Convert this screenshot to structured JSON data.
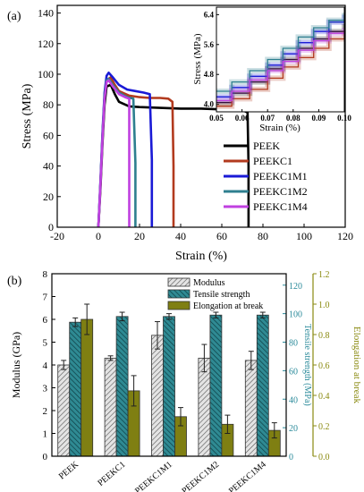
{
  "panels": {
    "a_label": "(a)",
    "b_label": "(b)"
  },
  "colors": {
    "PEEK": "#000000",
    "PEEKC1": "#b23a1e",
    "PEEKC1M1": "#1a1ad6",
    "PEEKC1M2": "#2e7f8f",
    "PEEKC1M4": "#c040e0",
    "modulus_fill": "#d0d0d0",
    "tensile_fill": "#1f6f78",
    "elongation_fill": "#7f7f12",
    "right_axis1": "#2a8a9a",
    "right_axis2": "#8a8a10"
  },
  "chart_data": [
    {
      "type": "line",
      "panel": "a",
      "xlabel": "Strain (%)",
      "ylabel": "Stress (MPa)",
      "xlim": [
        -20,
        120
      ],
      "ylim": [
        0,
        145
      ],
      "xticks": [
        -20,
        0,
        20,
        40,
        60,
        80,
        100,
        120
      ],
      "yticks": [
        0,
        20,
        40,
        60,
        80,
        100,
        120,
        140
      ],
      "legend_position": "right",
      "series": [
        {
          "name": "PEEK",
          "x": [
            0,
            1,
            2,
            3,
            4,
            6,
            8,
            10,
            15,
            20,
            30,
            40,
            50,
            60,
            70,
            72.5,
            73,
            73
          ],
          "y": [
            0,
            25,
            55,
            80,
            92,
            93,
            87,
            82,
            79,
            78.5,
            78,
            77.5,
            77.5,
            77,
            76.5,
            75,
            40,
            0
          ]
        },
        {
          "name": "PEEKC1",
          "x": [
            0,
            1,
            2,
            3,
            4,
            6,
            8,
            10,
            15,
            20,
            25,
            30,
            34,
            36,
            36.5,
            36.5
          ],
          "y": [
            0,
            28,
            60,
            85,
            96,
            98,
            93,
            89,
            86,
            85,
            84.5,
            84.5,
            84,
            82,
            40,
            0
          ]
        },
        {
          "name": "PEEKC1M1",
          "x": [
            0,
            1,
            2,
            3,
            4,
            5,
            7,
            10,
            14,
            18,
            22,
            25,
            26,
            26
          ],
          "y": [
            0,
            30,
            62,
            88,
            99,
            101,
            98,
            93,
            90,
            89,
            88,
            87,
            44,
            0
          ]
        },
        {
          "name": "PEEKC1M2",
          "x": [
            0,
            1,
            2,
            3,
            4,
            5,
            7,
            10,
            14,
            17,
            18,
            18
          ],
          "y": [
            0,
            29,
            60,
            86,
            96,
            97,
            93,
            88,
            85,
            84,
            42,
            0
          ]
        },
        {
          "name": "PEEKC1M4",
          "x": [
            0,
            1,
            2,
            3,
            4,
            5,
            7,
            10,
            13,
            15,
            15
          ],
          "y": [
            0,
            28,
            58,
            84,
            95,
            96,
            92,
            87,
            85,
            84,
            0
          ]
        }
      ]
    },
    {
      "type": "line",
      "panel": "a-inset",
      "xlabel": "Strain (%)",
      "ylabel": "Stress (MPa)",
      "xlim": [
        0.05,
        0.1
      ],
      "ylim": [
        3.8,
        6.6
      ],
      "xticks": [
        0.05,
        0.06,
        0.07,
        0.08,
        0.09,
        0.1
      ],
      "yticks": [
        4.0,
        4.8,
        5.6,
        6.4
      ],
      "xtick_labels": [
        "0.05",
        "0.06",
        "0.07",
        "0.08",
        "0.09",
        "0.10"
      ],
      "ytick_labels": [
        "4.0",
        "4.8",
        "5.6",
        "6.4"
      ],
      "series": [
        {
          "name": "PEEK",
          "x": [
            0.05,
            0.056,
            0.063,
            0.07,
            0.076,
            0.082,
            0.088,
            0.094,
            0.1
          ],
          "y": [
            4.05,
            4.3,
            4.6,
            4.95,
            5.2,
            5.5,
            5.75,
            5.95,
            6.15
          ]
        },
        {
          "name": "PEEKC1",
          "x": [
            0.05,
            0.056,
            0.063,
            0.07,
            0.076,
            0.082,
            0.088,
            0.094,
            0.1
          ],
          "y": [
            3.95,
            4.15,
            4.4,
            4.7,
            5.0,
            5.25,
            5.5,
            5.75,
            5.95
          ]
        },
        {
          "name": "PEEKC1M1",
          "x": [
            0.05,
            0.056,
            0.063,
            0.07,
            0.076,
            0.082,
            0.088,
            0.094,
            0.1
          ],
          "y": [
            4.2,
            4.45,
            4.75,
            5.05,
            5.35,
            5.65,
            5.95,
            6.2,
            6.4
          ]
        },
        {
          "name": "PEEKC1M2",
          "x": [
            0.05,
            0.056,
            0.063,
            0.07,
            0.076,
            0.082,
            0.088,
            0.094,
            0.1
          ],
          "y": [
            4.35,
            4.6,
            4.9,
            5.2,
            5.5,
            5.8,
            6.05,
            6.25,
            6.45
          ]
        },
        {
          "name": "PEEKC1M4",
          "x": [
            0.05,
            0.056,
            0.063,
            0.07,
            0.076,
            0.082,
            0.088,
            0.094,
            0.1
          ],
          "y": [
            4.1,
            4.35,
            4.65,
            4.9,
            5.15,
            5.45,
            5.7,
            5.9,
            6.05
          ]
        }
      ]
    },
    {
      "type": "bar",
      "panel": "b",
      "categories": [
        "PEEK",
        "PEEKC1",
        "PEEKC1M1",
        "PEEKC1M2",
        "PEEKC1M4"
      ],
      "legend_position": "top-center",
      "axes": {
        "left": {
          "label": "Modulus (GPa)",
          "lim": [
            0,
            8
          ],
          "ticks": [
            0,
            1,
            2,
            3,
            4,
            5,
            6,
            7,
            8
          ]
        },
        "right1": {
          "label": "Tensile strength (MPa)",
          "lim": [
            0,
            128
          ],
          "ticks": [
            0,
            20,
            40,
            60,
            80,
            100,
            120
          ]
        },
        "right2": {
          "label": "Elongation at break",
          "lim": [
            0,
            1.2
          ],
          "ticks": [
            "0.0",
            "0.2",
            "0.4",
            "0.6",
            "0.8",
            "1.0",
            "1.2"
          ]
        }
      },
      "series": [
        {
          "name": "Modulus",
          "axis": "left",
          "values": [
            4.0,
            4.3,
            5.3,
            4.3,
            4.2
          ],
          "errors": [
            0.2,
            0.1,
            0.6,
            0.6,
            0.4
          ]
        },
        {
          "name": "Tensile strength",
          "axis": "right1",
          "values": [
            94,
            98,
            98,
            99,
            99
          ],
          "errors": [
            3,
            3,
            2,
            2,
            2
          ]
        },
        {
          "name": "Elongation at break",
          "axis": "right2",
          "values": [
            0.9,
            0.43,
            0.26,
            0.21,
            0.17
          ],
          "errors": [
            0.1,
            0.1,
            0.06,
            0.06,
            0.05
          ]
        }
      ]
    }
  ]
}
